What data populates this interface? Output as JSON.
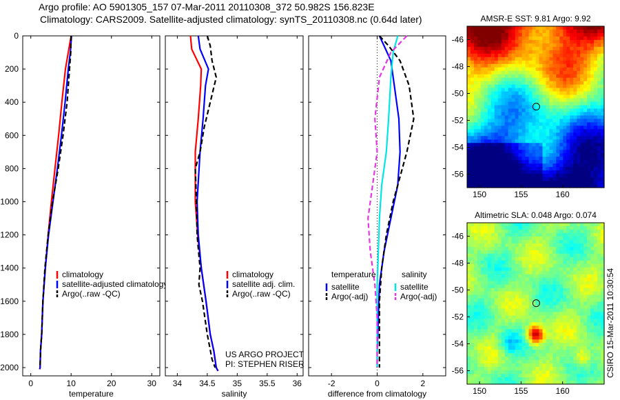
{
  "header": {
    "line1": "Argo profile: AO 5901305_157 07-Mar-2011 20110308_372 50.982S 156.823E",
    "line2": "Climatology: CARS2009. Satellite-adjusted climatology: synTS_20110308.nc (0.64d later)"
  },
  "side_label": "CSIRO 15-Mar-2011 10:30:54",
  "colors": {
    "climatology": "#ff0000",
    "satellite": "#0000ff",
    "argo": "#000000",
    "salinity_satellite": "#00e5e5",
    "salinity_argo": "#e535e5",
    "zero_line": "#000000"
  },
  "chart_data": [
    {
      "type": "line",
      "xlabel": "temperature",
      "ylabel": "",
      "xlim": [
        -2,
        32
      ],
      "ylim": [
        2050,
        0
      ],
      "xticks": [
        "0",
        "10",
        "20",
        "30"
      ],
      "xtick_values": [
        0,
        10,
        20,
        30
      ],
      "yticks": [
        "0",
        "200",
        "400",
        "600",
        "800",
        "1000",
        "1200",
        "1400",
        "1600",
        "1800",
        "2000"
      ],
      "ytick_values": [
        0,
        200,
        400,
        600,
        800,
        1000,
        1200,
        1400,
        1600,
        1800,
        2000
      ],
      "legend": [
        "climatology",
        "satellite-adjusted climatology",
        "Argo(..raw -QC)"
      ],
      "series": [
        {
          "name": "climatology",
          "style": "solid",
          "color_key": "climatology",
          "x": [
            10.0,
            9.3,
            8.6,
            7.7,
            6.9,
            6.0,
            5.1,
            4.3,
            3.6,
            3.0,
            2.7,
            2.4,
            2.3,
            2.2
          ],
          "y": [
            0,
            100,
            200,
            400,
            600,
            800,
            1000,
            1200,
            1400,
            1600,
            1800,
            1900,
            2000,
            2010
          ]
        },
        {
          "name": "satellite-adjusted climatology",
          "style": "solid",
          "color_key": "satellite",
          "x": [
            10.1,
            9.8,
            9.3,
            8.5,
            7.6,
            6.6,
            5.5,
            4.4,
            3.6,
            3.0,
            2.7,
            2.4,
            2.3,
            2.2
          ],
          "y": [
            0,
            100,
            200,
            400,
            600,
            800,
            1000,
            1200,
            1400,
            1600,
            1800,
            1900,
            2000,
            2010
          ]
        },
        {
          "name": "Argo(..raw -QC)",
          "style": "dashed",
          "color_key": "argo",
          "x": [
            10.0,
            9.9,
            9.6,
            9.0,
            8.0,
            6.8,
            5.4,
            4.3,
            3.5,
            3.0,
            2.7,
            2.4,
            2.3
          ],
          "y": [
            0,
            100,
            200,
            400,
            600,
            800,
            1000,
            1200,
            1400,
            1600,
            1800,
            1900,
            2000
          ]
        }
      ]
    },
    {
      "type": "line",
      "xlabel": "salinity",
      "ylabel": "",
      "xlim": [
        33.8,
        36.1
      ],
      "ylim": [
        2050,
        0
      ],
      "xticks": [
        "34",
        "34.5",
        "35",
        "35.5",
        "36"
      ],
      "xtick_values": [
        34,
        34.5,
        35,
        35.5,
        36
      ],
      "legend": [
        "climatology",
        "satellite adj. clim.",
        "Argo(..raw -QC)"
      ],
      "annotations": [
        "US ARGO PROJECT",
        "PI: STEPHEN RISER"
      ],
      "series": [
        {
          "name": "climatology",
          "style": "solid",
          "color_key": "climatology",
          "x": [
            34.22,
            34.24,
            34.4,
            34.39,
            34.35,
            34.3,
            34.3,
            34.34,
            34.4,
            34.48,
            34.55,
            34.61,
            34.65,
            34.68
          ],
          "y": [
            0,
            80,
            200,
            300,
            500,
            700,
            1000,
            1200,
            1400,
            1600,
            1800,
            1900,
            2000,
            2020
          ]
        },
        {
          "name": "satellite adj. clim.",
          "style": "solid",
          "color_key": "satellite",
          "x": [
            34.35,
            34.38,
            34.52,
            34.47,
            34.43,
            34.38,
            34.33,
            34.35,
            34.4,
            34.48,
            34.55,
            34.61,
            34.65,
            34.68
          ],
          "y": [
            0,
            80,
            200,
            300,
            500,
            700,
            1000,
            1200,
            1400,
            1600,
            1800,
            1900,
            2000,
            2020
          ]
        },
        {
          "name": "Argo(..raw -QC)",
          "style": "dashed",
          "color_key": "argo",
          "x": [
            34.5,
            34.55,
            34.58,
            34.65,
            34.55,
            34.45,
            34.38,
            34.3,
            34.32,
            34.33,
            34.38,
            34.36,
            34.42,
            34.5,
            34.58,
            34.63
          ],
          "y": [
            0,
            60,
            150,
            250,
            400,
            550,
            700,
            800,
            1000,
            1200,
            1400,
            1500,
            1600,
            1800,
            1950,
            2000
          ]
        }
      ]
    },
    {
      "type": "line",
      "xlabel": "difference from climatology",
      "ylabel": "",
      "xlim": [
        -3,
        3
      ],
      "ylim": [
        2050,
        0
      ],
      "xticks": [
        "-2",
        "0",
        "2"
      ],
      "xtick_values": [
        -2,
        0,
        2
      ],
      "legend_temperature": {
        "heading": "temperature",
        "items": [
          "satellite",
          "Argo(-adj)"
        ]
      },
      "legend_salinity": {
        "heading": "salinity",
        "items": [
          "satellite",
          "Argo(-adj)"
        ]
      },
      "series": [
        {
          "name": "satellite",
          "group": "temperature",
          "style": "solid",
          "color_key": "satellite",
          "x": [
            0.1,
            0.3,
            0.6,
            0.75,
            0.95,
            1.0,
            0.9,
            0.6,
            0.3,
            0.1,
            0.05,
            0.0,
            0.0
          ],
          "y": [
            0,
            60,
            150,
            300,
            500,
            700,
            900,
            1100,
            1300,
            1500,
            1700,
            1900,
            2000
          ]
        },
        {
          "name": "Argo(-adj)",
          "group": "temperature",
          "style": "dashed",
          "color_key": "argo",
          "x": [
            0.1,
            0.5,
            1.0,
            1.4,
            1.6,
            1.3,
            0.9,
            0.7,
            0.4,
            0.2,
            0.1,
            0.1,
            0.1
          ],
          "y": [
            0,
            60,
            150,
            300,
            500,
            700,
            900,
            1000,
            1200,
            1400,
            1600,
            1800,
            2000
          ]
        },
        {
          "name": "satellite",
          "group": "salinity",
          "style": "solid",
          "color_key": "salinity_satellite",
          "x": [
            0.9,
            0.7,
            0.6,
            0.5,
            0.4,
            0.2,
            0.1,
            0.05,
            0.0,
            0.0,
            0.0
          ],
          "y": [
            0,
            100,
            250,
            500,
            700,
            900,
            1100,
            1300,
            1500,
            1800,
            2000
          ]
        },
        {
          "name": "Argo(-adj)",
          "group": "salinity",
          "style": "dashed",
          "color_key": "salinity_argo",
          "x": [
            1.3,
            0.6,
            0.1,
            -0.1,
            0.0,
            -0.2,
            -0.4,
            -0.3,
            -0.1,
            0.0,
            0.0,
            0.0
          ],
          "y": [
            0,
            100,
            250,
            500,
            700,
            900,
            1100,
            1300,
            1500,
            1700,
            1900,
            2000
          ]
        }
      ]
    },
    {
      "type": "heatmap",
      "title": "AMSR-E SST: 9.81 Argo: 9.92",
      "xlim": [
        148.5,
        165
      ],
      "ylim": [
        -57,
        -45
      ],
      "xticks": [
        "150",
        "155",
        "160"
      ],
      "xtick_values": [
        150,
        155,
        160
      ],
      "yticks": [
        "-46",
        "-48",
        "-50",
        "-52",
        "-54",
        "-56"
      ],
      "ytick_values": [
        -46,
        -48,
        -50,
        -52,
        -54,
        -56
      ],
      "marker": {
        "lon": 156.823,
        "lat": -50.982
      }
    },
    {
      "type": "heatmap",
      "title": "Altimetric SLA: 0.048 Argo: 0.074",
      "xlim": [
        148.5,
        165
      ],
      "ylim": [
        -57,
        -45
      ],
      "xticks": [
        "150",
        "155",
        "160"
      ],
      "xtick_values": [
        150,
        155,
        160
      ],
      "yticks": [
        "-46",
        "-48",
        "-50",
        "-52",
        "-54",
        "-56"
      ],
      "ytick_values": [
        -46,
        -48,
        -50,
        -52,
        -54,
        -56
      ],
      "marker": {
        "lon": 156.823,
        "lat": -50.982
      }
    }
  ]
}
